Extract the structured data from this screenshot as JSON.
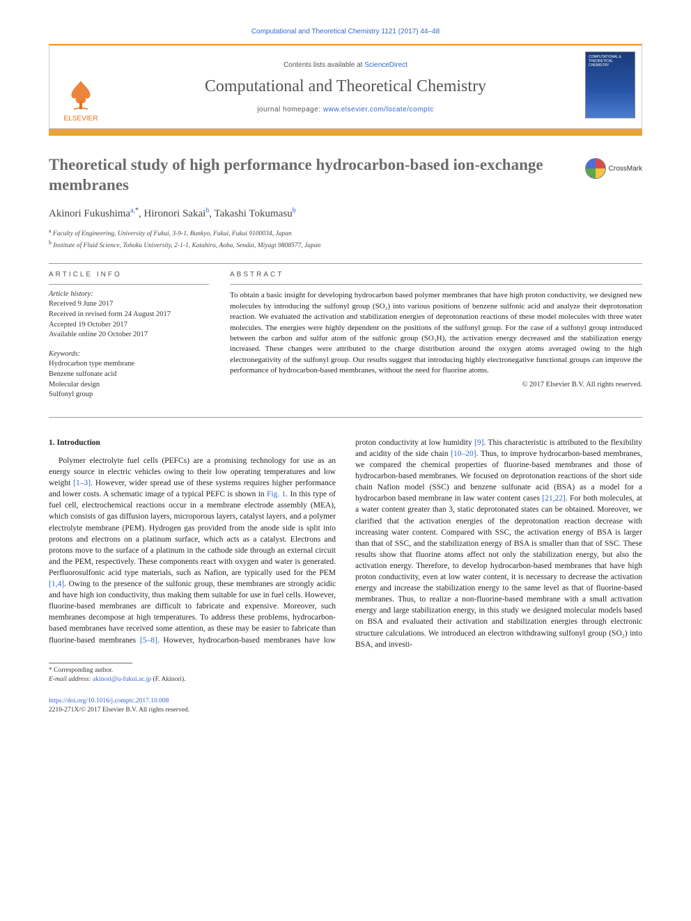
{
  "running_header": "Computational and Theoretical Chemistry 1121 (2017) 44–48",
  "masthead": {
    "contents_prefix": "Contents lists available at ",
    "contents_link": "ScienceDirect",
    "journal_name": "Computational and Theoretical Chemistry",
    "homepage_prefix": "journal homepage: ",
    "homepage_link": "www.elsevier.com/locate/comptc",
    "publisher": "ELSEVIER",
    "cover_label": "COMPUTATIONAL & THEORETICAL CHEMISTRY"
  },
  "crossmark_label": "CrossMark",
  "title": "Theoretical study of high performance hydrocarbon-based ion-exchange membranes",
  "authors_html": "Akinori Fukushima",
  "authors": [
    {
      "name": "Akinori Fukushima",
      "sup": "a,",
      "star": "*"
    },
    {
      "name": "Hironori Sakai",
      "sup": "b"
    },
    {
      "name": "Takashi Tokumasu",
      "sup": "b"
    }
  ],
  "affiliations": [
    {
      "sup": "a",
      "text": "Faculty of Engineering, University of Fukui, 3-9-1, Bunkyo, Fukui, Fukui 9100034, Japan"
    },
    {
      "sup": "b",
      "text": "Institute of Fluid Science, Tohoku University, 2-1-1, Katahira, Aoba, Sendai, Miyagi 9808577, Japan"
    }
  ],
  "article_info_heading": "article info",
  "abstract_heading": "abstract",
  "history": {
    "label": "Article history:",
    "lines": [
      "Received 9 June 2017",
      "Received in revised form 24 August 2017",
      "Accepted 19 October 2017",
      "Available online 20 October 2017"
    ]
  },
  "keywords": {
    "label": "Keywords:",
    "items": [
      "Hydrocarbon type membrane",
      "Benzene sulfonate acid",
      "Molecular design",
      "Sulfonyl group"
    ]
  },
  "abstract": "To obtain a basic insight for developing hydrocarbon based polymer membranes that have high proton conductivity, we designed new molecules by introducing the sulfonyl group (SO₂) into various positions of benzene sulfonic acid and analyze their deprotonation reaction. We evaluated the activation and stabilization energies of deprotonation reactions of these model molecules with three water molecules. The energies were highly dependent on the positions of the sulfonyl group. For the case of a sulfonyl group introduced between the carbon and sulfur atom of the sulfonic group (SO₃H), the activation energy decreased and the stabilization energy increased. These changes were attributed to the charge distribution around the oxygen atoms averaged owing to the high electronegativity of the sulfonyl group. Our results suggest that introducing highly electronegative functional groups can improve the performance of hydrocarbon-based membranes, without the need for fluorine atoms.",
  "abstract_copyright": "© 2017 Elsevier B.V. All rights reserved.",
  "intro_heading": "1. Introduction",
  "intro_para": "Polymer electrolyte fuel cells (PEFCs) are a promising technology for use as an energy source in electric vehicles owing to their low operating temperatures and low weight [1–3]. However, wider spread use of these systems requires higher performance and lower costs. A schematic image of a typical PEFC is shown in Fig. 1. In this type of fuel cell, electrochemical reactions occur in a membrane electrode assembly (MEA), which consists of gas diffusion layers, microporous layers, catalyst layers, and a polymer electrolyte membrane (PEM). Hydrogen gas provided from the anode side is split into protons and electrons on a platinum surface, which acts as a catalyst. Electrons and protons move to the surface of a platinum in the cathode side through an external circuit and the PEM, respectively. These components react with oxygen and water is generated. Perfluorosulfonic acid type materials, such as Nafion, are typically used for the PEM [1,4]. Owing to the presence of the sulfonic group, these membranes are strongly acidic and have high ion conductivity, thus making them suitable for use in fuel cells. However, fluorine-based membranes are difficult to fabricate and expensive. Moreover, such membranes decompose at high temperatures. To address these problems, hydrocarbon-based membranes have received some attention, as these may be easier to fabricate than fluorine-based membranes [5–8]. However, hydrocarbon-based membranes have low proton conductivity at low humidity [9]. This characteristic is attributed to the flexibility and acidity of the side chain [10–20]. Thus, to improve hydrocarbon-based membranes, we compared the chemical properties of fluorine-based membranes and those of hydrocarbon-based membranes. We focused on deprotonation reactions of the short side chain Nafion model (SSC) and benzene sulfonate acid (BSA) as a model for a hydrocarbon based membrane in law water content cases [21,22]. For both molecules, at a water content greater than 3, static deprotonated states can be obtained. Moreover, we clarified that the activation energies of the deprotonation reaction decrease with increasing water content. Compared with SSC, the activation energy of BSA is larger than that of SSC, and the stabilization energy of BSA is smaller than that of SSC. These results show that fluorine atoms affect not only the stabilization energy, but also the activation energy. Therefore, to develop hydrocarbon-based membranes that have high proton conductivity, even at low water content, it is necessary to decrease the activation energy and increase the stabilization energy to the same level as that of fluorine-based membranes. Thus, to realize a non-fluorine-based membrane with a small activation energy and large stabilization energy, in this study we designed molecular models based on BSA and evaluated their activation and stabilization energies through electronic structure calculations. We introduced an electron withdrawing sulfonyl group (SO₂) into BSA, and investi-",
  "refs_inline": {
    "r1_3": "[1–3]",
    "fig1": "Fig. 1",
    "r1_4": "[1,4]",
    "r5_8": "[5–8]",
    "r9": "[9]",
    "r10_20": "[10–20]",
    "r21_22": "[21,22]"
  },
  "corresponding": {
    "star": "* Corresponding author.",
    "email_label": "E-mail address: ",
    "email": "akinori@u-fukui.ac.jp",
    "email_suffix": " (F. Akinori)."
  },
  "footer": {
    "doi": "https://doi.org/10.1016/j.comptc.2017.10.008",
    "issn_line": "2210-271X/© 2017 Elsevier B.V. All rights reserved."
  },
  "colors": {
    "link": "#3366cc",
    "orange_bar": "#e8a33d",
    "elsevier_orange": "#e8701a",
    "heading_gray": "#6b6b6b",
    "text": "#222222"
  }
}
